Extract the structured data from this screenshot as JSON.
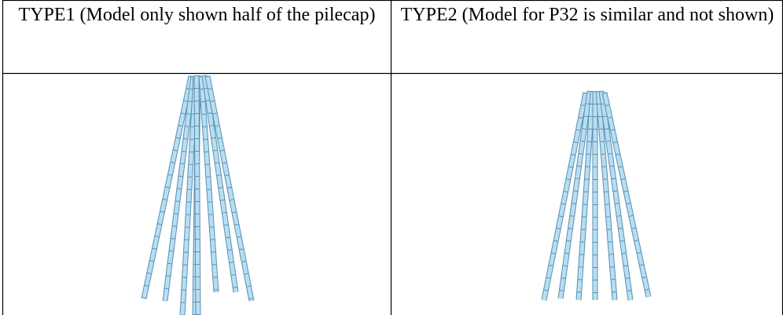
{
  "table": {
    "headers": [
      "TYPE1 (Model only shown half of the pilecap)",
      "TYPE2 (Model for P32 is similar and not shown)"
    ]
  }
}
